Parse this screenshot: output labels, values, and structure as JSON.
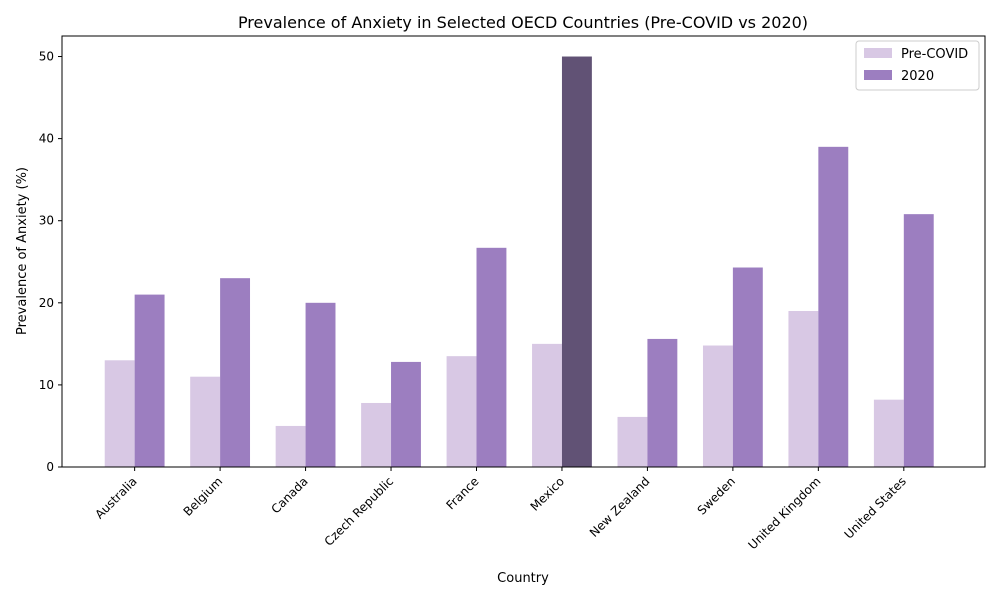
{
  "chart_data": {
    "type": "bar",
    "title": "Prevalence of Anxiety in Selected OECD Countries (Pre-COVID vs 2020)",
    "xlabel": "Country",
    "ylabel": "Prevalence of Anxiety (%)",
    "ylim": [
      0,
      52.5
    ],
    "yticks": [
      0,
      10,
      20,
      30,
      40,
      50
    ],
    "categories": [
      "Australia",
      "Belgium",
      "Canada",
      "Czech Republic",
      "France",
      "Mexico",
      "New Zealand",
      "Sweden",
      "United Kingdom",
      "United States"
    ],
    "series": [
      {
        "name": "Pre-COVID",
        "color": "#d8c8e4",
        "values": [
          13.0,
          11.0,
          5.0,
          7.8,
          13.5,
          15.0,
          6.1,
          14.8,
          19.0,
          8.2
        ]
      },
      {
        "name": "2020",
        "color": "#9c7ec0",
        "highlight_color": "#615275",
        "highlight_index": 5,
        "values": [
          21.0,
          23.0,
          20.0,
          12.8,
          26.7,
          50.0,
          15.6,
          24.3,
          39.0,
          30.8
        ]
      }
    ],
    "legend": "top-right",
    "grid": false
  }
}
